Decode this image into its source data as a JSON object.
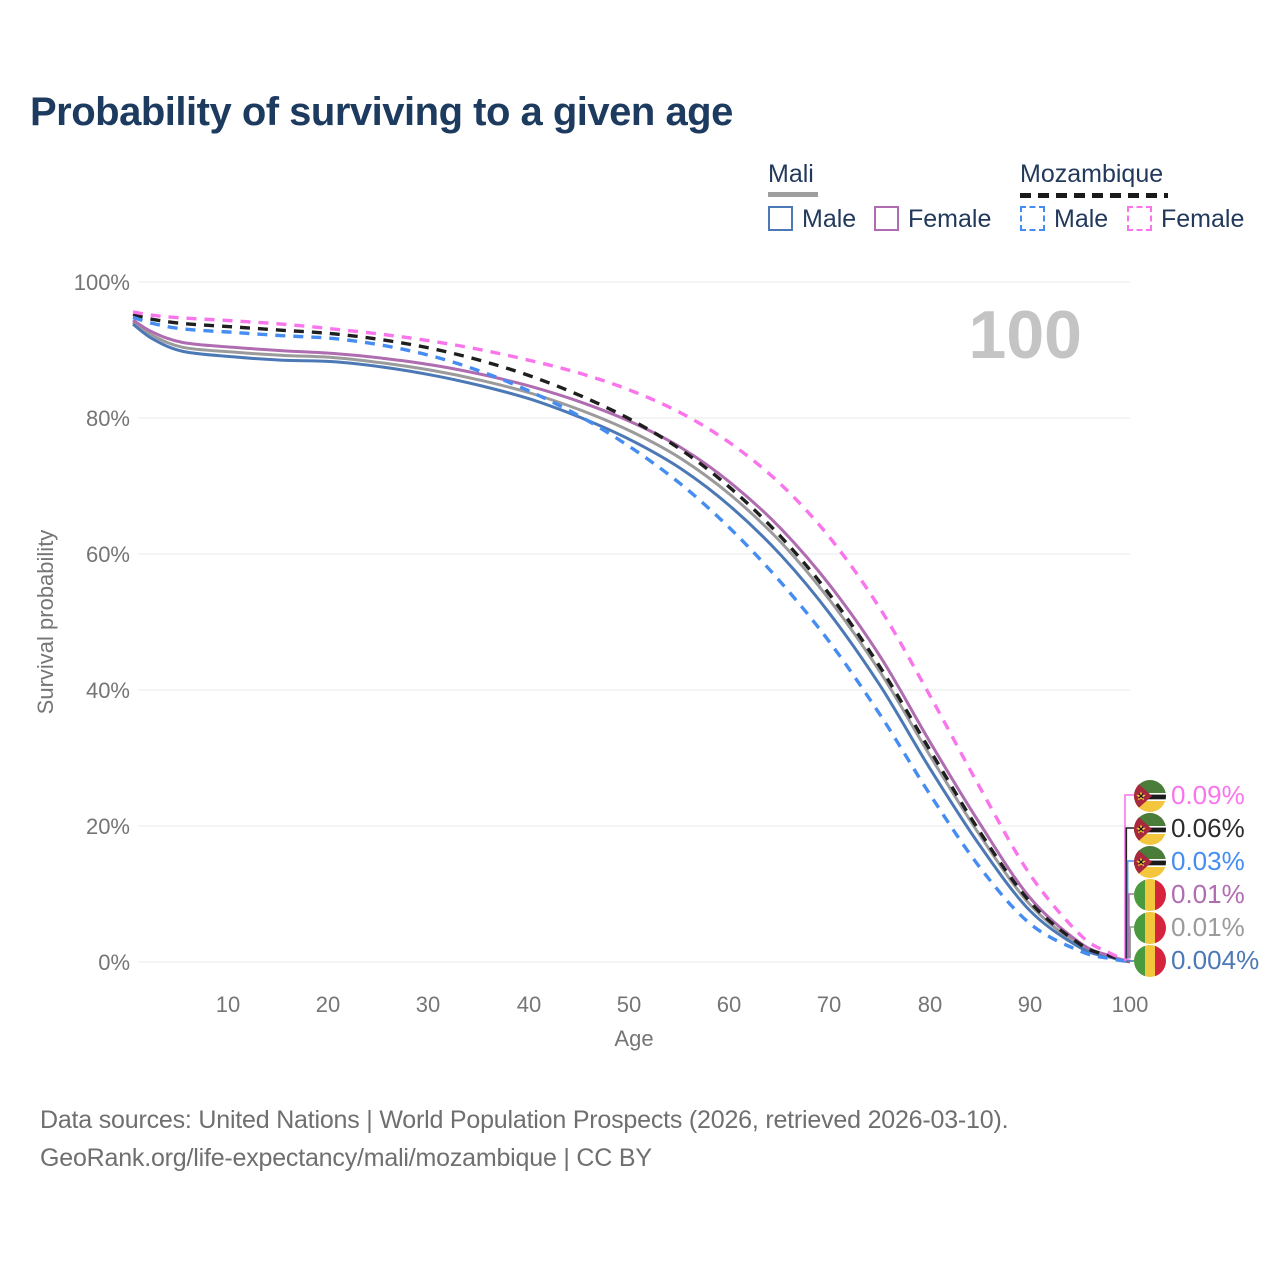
{
  "header": {
    "title": "Probability of surviving to a given age"
  },
  "legend": {
    "mali": {
      "label": "Mali",
      "male": "Male",
      "female": "Female",
      "line_style": "solid",
      "underline_color": "#9e9e9e"
    },
    "mozambique": {
      "label": "Mozambique",
      "male": "Male",
      "female": "Female",
      "line_style": "dashed",
      "underline_color": "#1a1a1a"
    }
  },
  "age_counter": "100",
  "axes": {
    "y_title": "Survival probability",
    "x_title": "Age"
  },
  "colors": {
    "title": "#1d3a5f",
    "axis_text": "#757575",
    "grid": "#e9e9e9",
    "watermark": "#c4c4c4",
    "mali_male": "#4c79b6",
    "mali_female": "#b06cb0",
    "mali_both": "#9b9b9b",
    "mozambique_male": "#458df2",
    "mozambique_female": "#fa74ec",
    "mozambique_both": "#1f1f1f"
  },
  "chart_data": {
    "type": "line",
    "title": "Probability of surviving to a given age",
    "xlabel": "Age",
    "ylabel": "Survival probability",
    "xlim": [
      0,
      100
    ],
    "ylim": [
      0,
      100
    ],
    "grid": "horizontal",
    "legend_position": "top-right",
    "x_tick_labels": [
      "10",
      "20",
      "30",
      "40",
      "50",
      "60",
      "70",
      "80",
      "90",
      "100"
    ],
    "y_tick_labels": [
      "100%",
      "80%",
      "60%",
      "40%",
      "20%",
      "0%"
    ],
    "ages": [
      0,
      2,
      5,
      10,
      15,
      20,
      25,
      30,
      35,
      40,
      45,
      50,
      55,
      60,
      65,
      70,
      75,
      80,
      85,
      90,
      95,
      98,
      100
    ],
    "series": [
      {
        "id": "mozambique-female",
        "country": "Mozambique",
        "sex": "Female",
        "line_style": "dashed",
        "color": "#fa74ec",
        "flag": "mozambique-flag",
        "end_label": "0.09%",
        "values": [
          95.6,
          95.1,
          94.7,
          94.3,
          93.8,
          93.1,
          92.3,
          91.3,
          90.0,
          88.4,
          86.5,
          84.0,
          80.7,
          76.2,
          70.2,
          62.2,
          51.8,
          39.0,
          25.5,
          12.8,
          4.0,
          1.3,
          0.09
        ]
      },
      {
        "id": "mozambique-both",
        "country": "Mozambique",
        "sex": "Both sexes",
        "line_style": "dashed",
        "color": "#1f1f1f",
        "flag": "mozambique-flag",
        "end_label": "0.06%",
        "values": [
          95.2,
          94.5,
          93.9,
          93.4,
          92.9,
          92.4,
          91.5,
          90.2,
          88.4,
          86.1,
          83.2,
          79.7,
          75.3,
          69.6,
          62.5,
          53.8,
          43.2,
          31.0,
          19.0,
          8.8,
          2.6,
          0.9,
          0.06
        ]
      },
      {
        "id": "mozambique-male",
        "country": "Mozambique",
        "sex": "Male",
        "line_style": "dashed",
        "color": "#458df2",
        "flag": "mozambique-flag",
        "end_label": "0.03%",
        "values": [
          94.8,
          93.9,
          93.1,
          92.6,
          92.1,
          91.7,
          90.7,
          89.1,
          86.8,
          83.8,
          80.1,
          75.6,
          70.2,
          63.6,
          55.8,
          46.8,
          36.2,
          24.5,
          13.8,
          5.6,
          1.6,
          0.5,
          0.03
        ]
      },
      {
        "id": "mali-female",
        "country": "Mali",
        "sex": "Female",
        "line_style": "solid",
        "color": "#b06cb0",
        "flag": "mali-flag",
        "end_label": "0.01%",
        "values": [
          94.4,
          92.6,
          91.1,
          90.4,
          89.9,
          89.5,
          88.8,
          87.8,
          86.4,
          84.6,
          82.3,
          79.4,
          75.6,
          70.4,
          63.7,
          55.2,
          44.8,
          32.2,
          20.2,
          9.4,
          2.8,
          0.9,
          0.01
        ]
      },
      {
        "id": "mali-both",
        "country": "Mali",
        "sex": "Both sexes",
        "line_style": "solid",
        "color": "#9b9b9b",
        "flag": "mali-flag",
        "end_label": "0.01%",
        "values": [
          94.1,
          92.1,
          90.4,
          89.7,
          89.2,
          88.9,
          88.1,
          87.0,
          85.5,
          83.6,
          81.1,
          78.0,
          74.0,
          68.6,
          61.7,
          53.0,
          42.5,
          30.2,
          18.5,
          8.4,
          2.4,
          0.8,
          0.01
        ]
      },
      {
        "id": "mali-male",
        "country": "Mali",
        "sex": "Male",
        "line_style": "solid",
        "color": "#4c79b6",
        "flag": "mali-flag",
        "end_label": "0.004%",
        "values": [
          93.8,
          91.6,
          89.8,
          89.0,
          88.5,
          88.3,
          87.5,
          86.3,
          84.7,
          82.7,
          80.0,
          76.7,
          72.5,
          66.9,
          59.8,
          51.0,
          40.5,
          28.3,
          17.0,
          7.5,
          2.1,
          0.7,
          0.004
        ]
      }
    ]
  },
  "footer": {
    "line1": "Data sources: United Nations | World Population Prospects (2026, retrieved 2026-03-10).",
    "line2": "GeoRank.org/life-expectancy/mali/mozambique | CC BY"
  }
}
